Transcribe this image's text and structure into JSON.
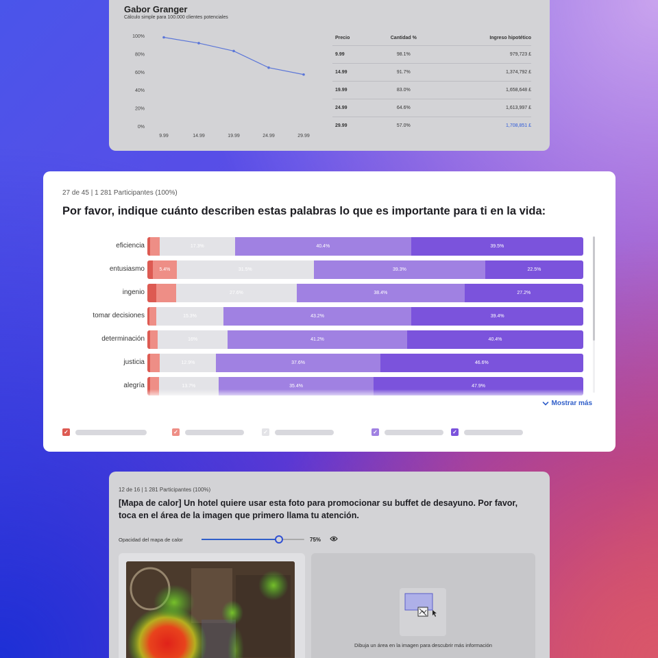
{
  "gabor": {
    "title": "Gabor Granger",
    "subtitle": "Cálculo simple para 100.000 clientes potenciales",
    "table": {
      "headers": [
        "Precio",
        "Cantidad %",
        "Ingreso hipotético"
      ],
      "rows": [
        [
          "9.99",
          "98.1%",
          "979,723 £"
        ],
        [
          "14.99",
          "91.7%",
          "1,374,792 £"
        ],
        [
          "19.99",
          "83.0%",
          "1,658,648 £"
        ],
        [
          "24.99",
          "64.6%",
          "1,613,997 £"
        ],
        [
          "29.99",
          "57.0%",
          "1,708,851 £"
        ]
      ]
    },
    "chart_data": {
      "type": "line",
      "categories": [
        "9.99",
        "14.99",
        "19.99",
        "24.99",
        "29.99"
      ],
      "values": [
        98.1,
        91.7,
        83.0,
        64.6,
        57.0
      ],
      "y_ticks": [
        "0%",
        "20%",
        "40%",
        "60%",
        "80%",
        "100%"
      ],
      "ylim": [
        0,
        100
      ],
      "color": "#5b76d8"
    }
  },
  "survey": {
    "meta": "27 de 45 | 1 281 Participantes (100%)",
    "question": "Por favor, indique cuánto describen estas palabras lo que es importante para ti en la vida:",
    "show_more": "Mostrar más",
    "colors": [
      "#dd5a52",
      "#ee8e86",
      "#e3e3e7",
      "#a081e2",
      "#7b53dc"
    ],
    "chart_data": {
      "type": "bar",
      "stacked": true,
      "orientation": "horizontal",
      "categories": [
        "eficiencia",
        "entusiasmo",
        "ingenio",
        "tomar decisiones",
        "determinación",
        "justicia",
        "alegría"
      ],
      "series": [
        {
          "values": [
            0.7,
            1.3,
            2.0,
            0.5,
            0.7,
            0.6,
            0.6
          ]
        },
        {
          "values": [
            2.1,
            5.4,
            4.6,
            1.6,
            1.7,
            2.3,
            2.0
          ]
        },
        {
          "values": [
            17.3,
            31.5,
            27.6,
            15.3,
            16.0,
            12.9,
            13.7
          ]
        },
        {
          "values": [
            40.4,
            39.3,
            38.4,
            43.2,
            41.2,
            37.6,
            35.4
          ]
        },
        {
          "values": [
            39.5,
            22.5,
            27.2,
            39.4,
            40.4,
            46.6,
            47.9
          ]
        }
      ],
      "labels": [
        [
          "",
          "",
          "17.3%",
          "40.4%",
          "39.5%"
        ],
        [
          "",
          "5.4%",
          "31.5%",
          "39.3%",
          "22.5%"
        ],
        [
          "",
          "",
          "27.6%",
          "38.4%",
          "27.2%"
        ],
        [
          "",
          "",
          "15.3%",
          "43.2%",
          "39.4%"
        ],
        [
          "",
          "",
          "16%",
          "41.2%",
          "40.4%"
        ],
        [
          "",
          "",
          "12.9%",
          "37.6%",
          "46.6%"
        ],
        [
          "",
          "",
          "13.7%",
          "35.4%",
          "47.9%"
        ]
      ]
    }
  },
  "heatmap": {
    "meta": "12 de 16 | 1 281 Participantes (100%)",
    "question": "[Mapa de calor] Un hotel quiere usar esta foto para promocionar su buffet de desayuno. Por favor, toca en el área de la imagen que primero llama tu atención.",
    "opacity_label": "Opacidad del mapa de calor",
    "opacity_value": "75%",
    "opacity_fraction": 0.75,
    "draw_hint": "Dibuja un área en la imagen para descubrir más información"
  }
}
